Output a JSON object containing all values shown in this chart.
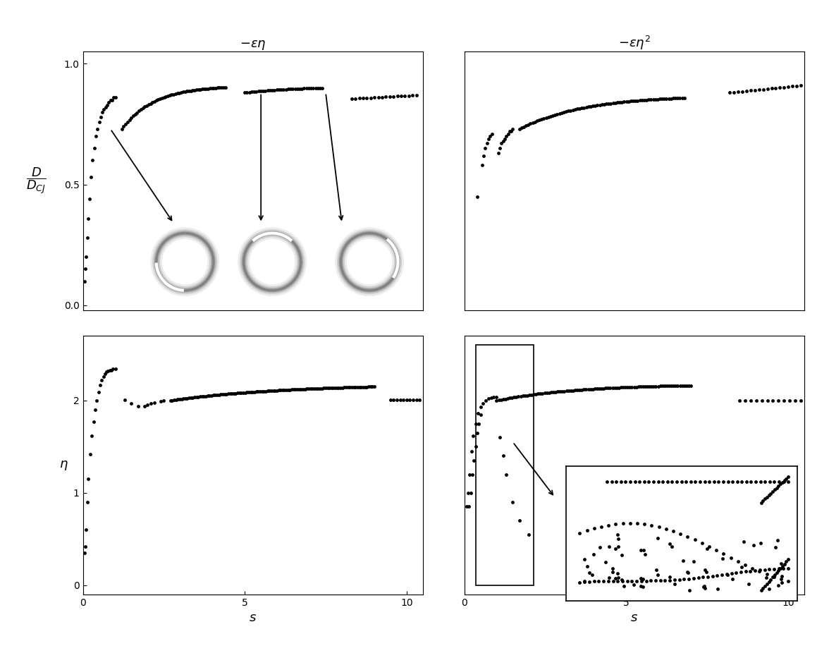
{
  "title_top_left": "$-\\epsilon\\eta$",
  "title_top_right": "$-\\epsilon\\eta^2$",
  "ylabel_top": "$\\dfrac{D}{D_{CJ}}$",
  "ylabel_bottom": "$\\eta$",
  "xlabel_bottom": "$s$",
  "background": "#ffffff",
  "tl_yticks": [
    0,
    0.5,
    1
  ],
  "tl_ylim": [
    -0.02,
    1.05
  ],
  "tl_xlim": [
    0,
    10.5
  ],
  "tr_ylim": [
    -0.02,
    1.05
  ],
  "tr_xlim": [
    0,
    10.5
  ],
  "bl_yticks": [
    0,
    1,
    2
  ],
  "bl_xticks": [
    0,
    5,
    10
  ],
  "bl_ylim": [
    -0.1,
    2.7
  ],
  "bl_xlim": [
    0,
    10.5
  ],
  "br_ylim": [
    -0.1,
    2.7
  ],
  "br_xlim": [
    0,
    10.5
  ],
  "br_xticks": [
    0,
    5,
    10
  ]
}
